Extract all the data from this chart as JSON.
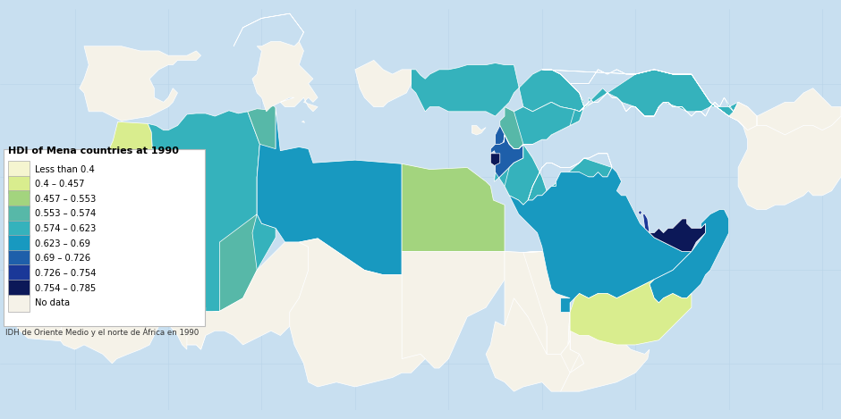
{
  "title": "HDI of Mena countries at 1990",
  "subtitle": "IDH de Oriente Medio y el norte de África en 1990",
  "background_ocean": "#c8dff0",
  "background_land": "#f0eedd",
  "legend_categories": [
    {
      "label": "Less than 0.4",
      "color": "#f5f5d0"
    },
    {
      "label": "0.4 – 0.457",
      "color": "#d9ed8e"
    },
    {
      "label": "0.457 – 0.553",
      "color": "#a3d47e"
    },
    {
      "label": "0.553 – 0.574",
      "color": "#57b8a8"
    },
    {
      "label": "0.574 – 0.623",
      "color": "#35b2bc"
    },
    {
      "label": "0.623 – 0.69",
      "color": "#1899c0"
    },
    {
      "label": "0.69 – 0.726",
      "color": "#1e5faa"
    },
    {
      "label": "0.726 – 0.754",
      "color": "#1a3898"
    },
    {
      "label": "0.754 – 0.785",
      "color": "#0c1858"
    },
    {
      "label": "No data",
      "color": "#f5f2e8"
    }
  ],
  "countries": {
    "Morocco": {
      "hdi": 0.428,
      "cat": 1
    },
    "Western Sahara": {
      "hdi": null,
      "cat": 9
    },
    "Mauritania": {
      "hdi": null,
      "cat": 9
    },
    "Algeria": {
      "hdi": 0.598,
      "cat": 4
    },
    "Tunisia": {
      "hdi": 0.563,
      "cat": 3
    },
    "Libya": {
      "hdi": 0.656,
      "cat": 5
    },
    "Egypt": {
      "hdi": 0.505,
      "cat": 2
    },
    "Sudan": {
      "hdi": null,
      "cat": 9
    },
    "Mali": {
      "hdi": null,
      "cat": 9
    },
    "Niger": {
      "hdi": null,
      "cat": 9
    },
    "Chad": {
      "hdi": null,
      "cat": 9
    },
    "Ethiopia": {
      "hdi": null,
      "cat": 9
    },
    "Somalia": {
      "hdi": null,
      "cat": 9
    },
    "Djibouti": {
      "hdi": null,
      "cat": 9
    },
    "Eritrea": {
      "hdi": null,
      "cat": 9
    },
    "Jordan": {
      "hdi": 0.598,
      "cat": 4
    },
    "Israel": {
      "hdi": 0.708,
      "cat": 6
    },
    "Palestine": {
      "hdi": 0.77,
      "cat": 8
    },
    "Lebanon": {
      "hdi": 0.708,
      "cat": 6
    },
    "Syria": {
      "hdi": 0.563,
      "cat": 3
    },
    "Iraq": {
      "hdi": 0.598,
      "cat": 4
    },
    "Kuwait": {
      "hdi": 0.74,
      "cat": 7
    },
    "Saudi Arabia": {
      "hdi": 0.656,
      "cat": 5
    },
    "Bahrain": {
      "hdi": 0.74,
      "cat": 7
    },
    "Qatar": {
      "hdi": 0.74,
      "cat": 7
    },
    "UAE": {
      "hdi": 0.77,
      "cat": 8
    },
    "Oman": {
      "hdi": 0.656,
      "cat": 5
    },
    "Yemen": {
      "hdi": 0.428,
      "cat": 1
    },
    "Iran": {
      "hdi": 0.598,
      "cat": 4
    },
    "Turkey": {
      "hdi": 0.598,
      "cat": 4
    },
    "Afghanistan": {
      "hdi": null,
      "cat": 9
    },
    "Pakistan": {
      "hdi": null,
      "cat": 9
    },
    "Cyprus": {
      "hdi": null,
      "cat": 9
    },
    "Greece": {
      "hdi": null,
      "cat": 9
    },
    "Spain": {
      "hdi": null,
      "cat": 9
    },
    "Italy": {
      "hdi": null,
      "cat": 9
    },
    "Malta": {
      "hdi": null,
      "cat": 9
    }
  },
  "extent": [
    -18,
    72,
    5,
    48
  ],
  "figsize": [
    9.4,
    4.69
  ],
  "dpi": 100
}
